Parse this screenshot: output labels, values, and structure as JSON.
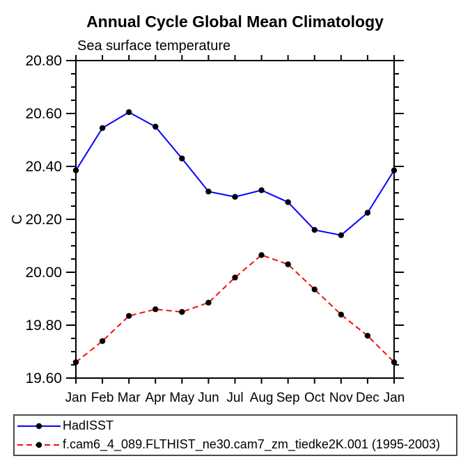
{
  "title": "Annual Cycle Global Mean Climatology",
  "subtitle": "Sea surface temperature",
  "y_axis_title": "C",
  "colors": {
    "axis": "#000000",
    "marker": "#000000",
    "obs_line": "#0000ff",
    "model_line": "#f50f0a",
    "legend_border": "#4b4b4b"
  },
  "chart_data": {
    "type": "line",
    "title": "Annual Cycle Global Mean Climatology",
    "subtitle": "Sea surface temperature",
    "xlabel": "",
    "ylabel": "C",
    "categories": [
      "Jan",
      "Feb",
      "Mar",
      "Apr",
      "May",
      "Jun",
      "Jul",
      "Aug",
      "Sep",
      "Oct",
      "Nov",
      "Dec",
      "Jan"
    ],
    "series": [
      {
        "name": "HadISST",
        "color": "#0000ff",
        "line_style": "solid",
        "marker": "filled-circle",
        "marker_color": "#000000",
        "values": [
          20.385,
          20.545,
          20.605,
          20.55,
          20.43,
          20.305,
          20.285,
          20.31,
          20.265,
          20.16,
          20.14,
          20.225,
          20.385
        ]
      },
      {
        "name": "f.cam6_4_089.FLTHIST_ne30.cam7_zm_tiedke2K.001 (1995-2003)",
        "color": "#f50f0a",
        "line_style": "dashed",
        "marker": "filled-circle",
        "marker_color": "#000000",
        "values": [
          19.66,
          19.74,
          19.835,
          19.86,
          19.85,
          19.885,
          19.98,
          20.065,
          20.03,
          19.935,
          19.84,
          19.76,
          19.66
        ]
      }
    ],
    "ylim": [
      19.6,
      20.8
    ],
    "ytick_labels": [
      "19.60",
      "19.80",
      "20.00",
      "20.20",
      "20.40",
      "20.60",
      "20.80"
    ],
    "ytick_major_step": 0.2,
    "ytick_minor_step": 0.05,
    "grid": false,
    "axes_frame": "box with outward ticks on all sides",
    "legend_position": "framed box below plot, bottom-left"
  }
}
